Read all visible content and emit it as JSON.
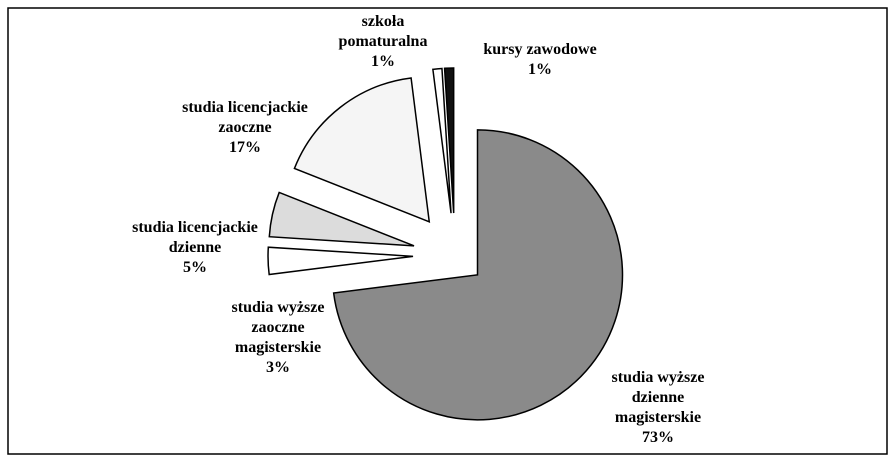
{
  "chart_data": {
    "type": "pie",
    "categories": [
      "studia wyższe dzienne magisterskie",
      "studia wyższe zaoczne magisterskie",
      "studia licencjackie dzienne",
      "studia licencjackie zaoczne",
      "szkoła pomaturalna",
      "kursy zawodowe"
    ],
    "values": [
      73,
      3,
      5,
      17,
      1,
      1
    ],
    "value_labels": [
      "73%",
      "3%",
      "5%",
      "17%",
      "1%",
      "1%"
    ],
    "colors": [
      "#8a8a8a",
      "#ffffff",
      "#dcdcdc",
      "#f5f5f5",
      "#ffffff",
      "#111111"
    ]
  }
}
